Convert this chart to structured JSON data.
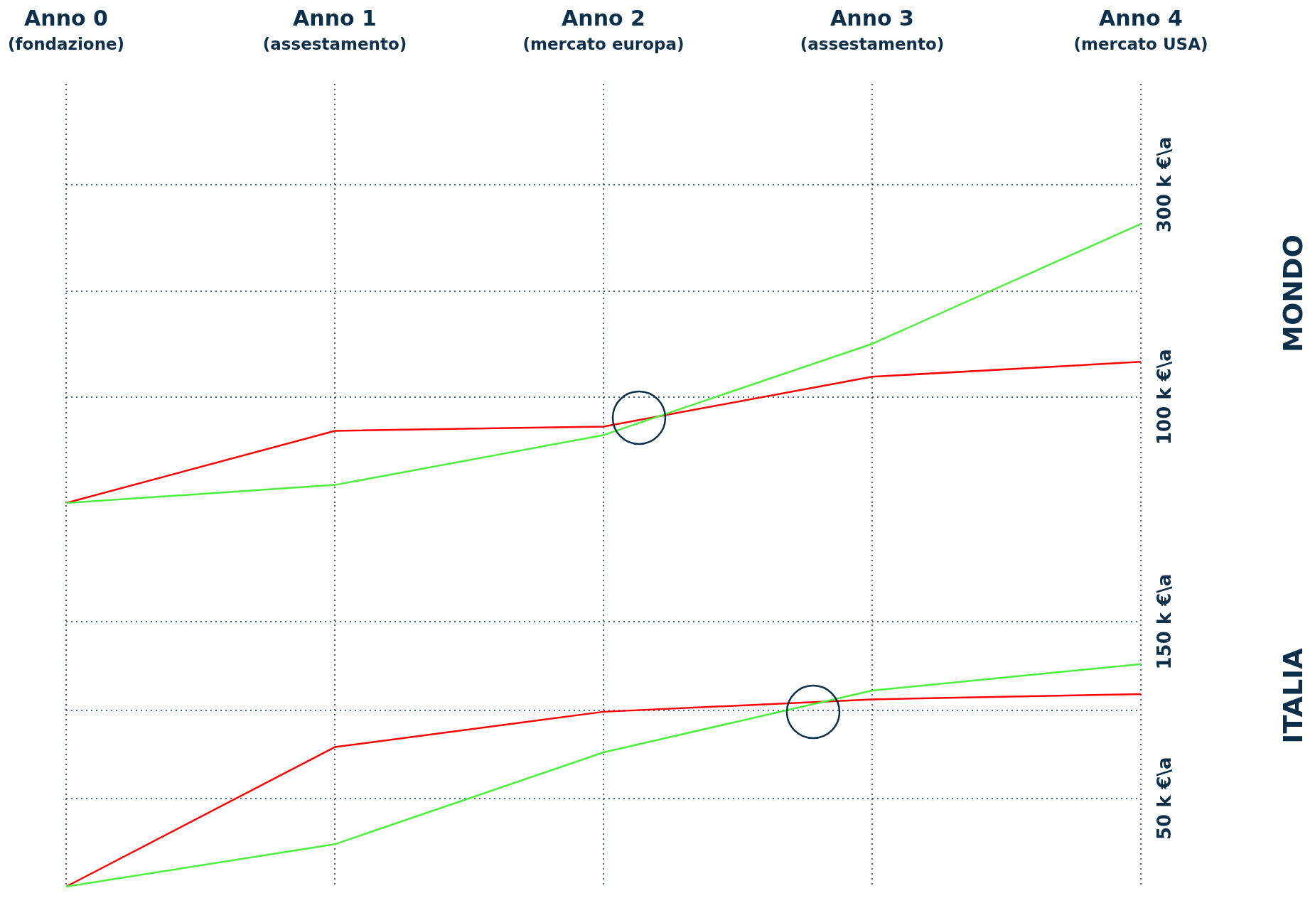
{
  "chart_data": [
    {
      "type": "line",
      "ylabel": "MONDO",
      "categories": [
        "Anno 0\n(fondazione)",
        "Anno 1\n(assestamento)",
        "Anno 2\n(mercato europa)",
        "Anno 3\n(assestamento)",
        "Anno 4\n(mercato USA)"
      ],
      "series": [
        {
          "color": "#ff0000",
          "values": [
            0,
            68,
            72,
            119,
            133
          ]
        },
        {
          "color": "#4cf03c",
          "values": [
            0,
            17,
            64,
            150,
            263
          ]
        }
      ],
      "ylim": [
        0,
        395
      ],
      "yticks": [
        {
          "value": 100,
          "label": "100 k €\\a"
        },
        {
          "value": 200,
          "label": null
        },
        {
          "value": 300,
          "label": "300 k €\\a"
        }
      ],
      "grid": true
    },
    {
      "type": "line",
      "ylabel": "ITALIA",
      "categories": [
        null,
        null,
        null,
        null,
        null
      ],
      "series": [
        {
          "color": "#ff0000",
          "values": [
            0,
            79,
            99,
            106,
            109
          ]
        },
        {
          "color": "#4cf03c",
          "values": [
            0,
            24,
            76,
            111,
            126
          ]
        }
      ],
      "ylim": [
        0,
        216
      ],
      "yticks": [
        {
          "value": 50,
          "label": "50 k €\\a"
        },
        {
          "value": 100,
          "label": null
        },
        {
          "value": 150,
          "label": "150 k €\\a"
        }
      ],
      "grid": true,
      "tick_labels": "y"
    }
  ]
}
